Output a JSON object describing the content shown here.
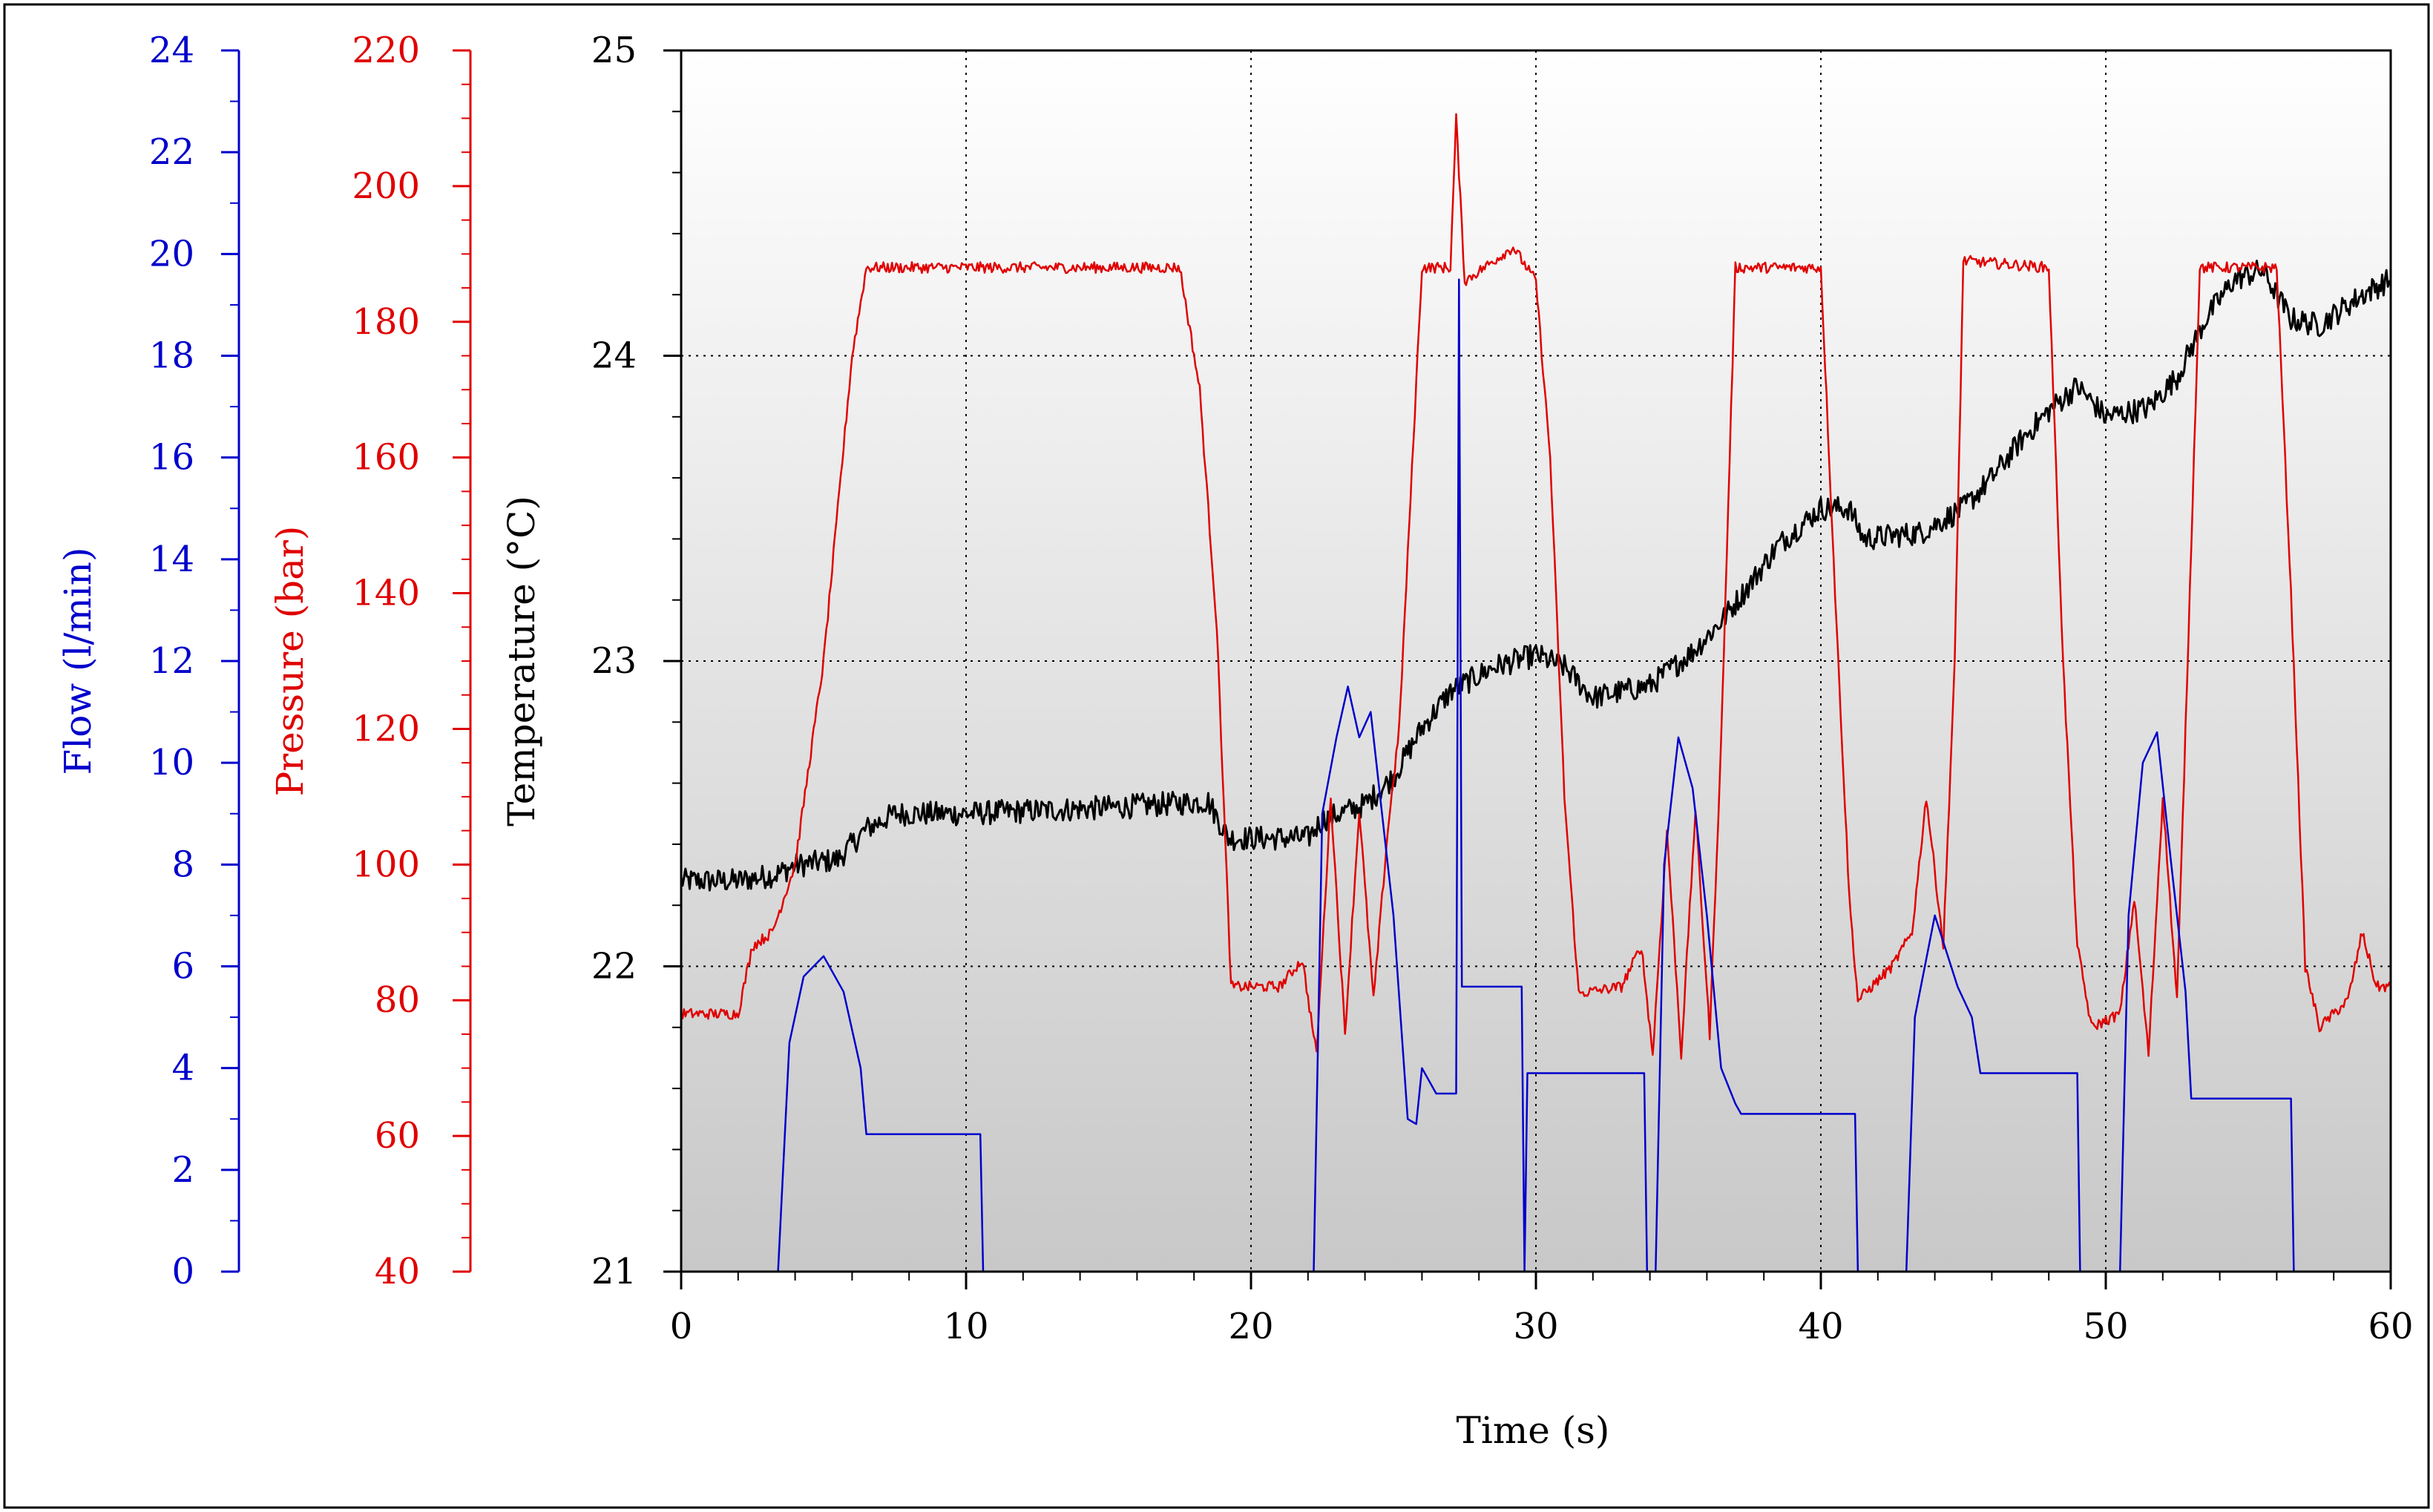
{
  "chart_data": {
    "type": "line",
    "title": "",
    "xlabel": "Time (s)",
    "xlim": [
      0,
      60
    ],
    "xticks": [
      0,
      10,
      20,
      30,
      40,
      50,
      60
    ],
    "grid": true,
    "axes": {
      "flow": {
        "label": "Flow (l/min)",
        "color": "#0000cc",
        "ylim": [
          0,
          24
        ],
        "ticks": [
          0,
          2,
          4,
          6,
          8,
          10,
          12,
          14,
          16,
          18,
          20,
          22,
          24
        ]
      },
      "pressure": {
        "label": "Pressure (bar)",
        "color": "#e00000",
        "ylim": [
          40,
          220
        ],
        "ticks": [
          40,
          60,
          80,
          100,
          120,
          140,
          160,
          180,
          200,
          220
        ]
      },
      "temperature": {
        "label": "Temperature (°C)",
        "color": "#000000",
        "ylim": [
          21,
          25
        ],
        "ticks": [
          21,
          22,
          23,
          24,
          25
        ]
      }
    },
    "series": [
      {
        "name": "Temperature",
        "axis": "temperature",
        "color": "#000000",
        "noise": 0.04,
        "points": [
          [
            0,
            22.28
          ],
          [
            2,
            22.28
          ],
          [
            3.3,
            22.3
          ],
          [
            4,
            22.33
          ],
          [
            5.5,
            22.35
          ],
          [
            6.5,
            22.45
          ],
          [
            7.5,
            22.5
          ],
          [
            10,
            22.5
          ],
          [
            15,
            22.52
          ],
          [
            18.5,
            22.54
          ],
          [
            19.2,
            22.42
          ],
          [
            22,
            22.42
          ],
          [
            22.5,
            22.48
          ],
          [
            24,
            22.53
          ],
          [
            25,
            22.62
          ],
          [
            26,
            22.78
          ],
          [
            27,
            22.9
          ],
          [
            28.5,
            22.98
          ],
          [
            30,
            23.02
          ],
          [
            31,
            22.98
          ],
          [
            32,
            22.88
          ],
          [
            34,
            22.92
          ],
          [
            35.5,
            23.03
          ],
          [
            36.5,
            23.13
          ],
          [
            37.5,
            23.25
          ],
          [
            38.5,
            23.38
          ],
          [
            40,
            23.5
          ],
          [
            41,
            23.5
          ],
          [
            41.5,
            23.4
          ],
          [
            43.5,
            23.42
          ],
          [
            45,
            23.5
          ],
          [
            46,
            23.6
          ],
          [
            47,
            23.72
          ],
          [
            48,
            23.82
          ],
          [
            49,
            23.9
          ],
          [
            50,
            23.8
          ],
          [
            51.5,
            23.83
          ],
          [
            52.5,
            23.93
          ],
          [
            53.5,
            24.12
          ],
          [
            54.5,
            24.25
          ],
          [
            55.5,
            24.28
          ],
          [
            56.5,
            24.12
          ],
          [
            57.5,
            24.1
          ],
          [
            59,
            24.2
          ],
          [
            60,
            24.25
          ]
        ]
      },
      {
        "name": "Pressure",
        "axis": "pressure",
        "color": "#e00000",
        "noise": 0.8,
        "points": [
          [
            0,
            78
          ],
          [
            2,
            78
          ],
          [
            2.5,
            88
          ],
          [
            3.2,
            90
          ],
          [
            4,
            100
          ],
          [
            5,
            130
          ],
          [
            6,
            175
          ],
          [
            6.5,
            188
          ],
          [
            17.5,
            188
          ],
          [
            18.2,
            170
          ],
          [
            18.8,
            135
          ],
          [
            19.3,
            82
          ],
          [
            21,
            82
          ],
          [
            21.8,
            86
          ],
          [
            22.3,
            72
          ],
          [
            22.8,
            110
          ],
          [
            23.3,
            75
          ],
          [
            23.8,
            108
          ],
          [
            24.3,
            80
          ],
          [
            24.8,
            105
          ],
          [
            25.2,
            120
          ],
          [
            26,
            188
          ],
          [
            27,
            188
          ],
          [
            27.2,
            210
          ],
          [
            27.5,
            186
          ],
          [
            29.2,
            191
          ],
          [
            30,
            186
          ],
          [
            30.5,
            160
          ],
          [
            31,
            110
          ],
          [
            31.5,
            81
          ],
          [
            33,
            82
          ],
          [
            33.7,
            88
          ],
          [
            34.1,
            72
          ],
          [
            34.6,
            105
          ],
          [
            35.1,
            72
          ],
          [
            35.6,
            108
          ],
          [
            36.1,
            75
          ],
          [
            36.5,
            118
          ],
          [
            37,
            188
          ],
          [
            40,
            188
          ],
          [
            40.5,
            140
          ],
          [
            41,
            95
          ],
          [
            41.3,
            80
          ],
          [
            42.5,
            85
          ],
          [
            43.2,
            90
          ],
          [
            43.7,
            110
          ],
          [
            44.3,
            88
          ],
          [
            44.7,
            130
          ],
          [
            45,
            189
          ],
          [
            48,
            188
          ],
          [
            48.5,
            130
          ],
          [
            49,
            88
          ],
          [
            49.5,
            76
          ],
          [
            50.5,
            78
          ],
          [
            51,
            95
          ],
          [
            51.5,
            72
          ],
          [
            52,
            110
          ],
          [
            52.5,
            80
          ],
          [
            52.8,
            120
          ],
          [
            53.3,
            188
          ],
          [
            56,
            188
          ],
          [
            56.5,
            140
          ],
          [
            57,
            85
          ],
          [
            57.5,
            76
          ],
          [
            58.5,
            80
          ],
          [
            59,
            90
          ],
          [
            59.5,
            82
          ],
          [
            60,
            82
          ]
        ]
      },
      {
        "name": "Flow",
        "axis": "flow",
        "color": "#0000cc",
        "noise": 0,
        "points": [
          [
            0,
            0
          ],
          [
            3.4,
            0
          ],
          [
            3.8,
            4.5
          ],
          [
            4.3,
            5.8
          ],
          [
            5,
            6.2
          ],
          [
            5.7,
            5.5
          ],
          [
            6.3,
            4
          ],
          [
            6.5,
            2.7
          ],
          [
            10.5,
            2.7
          ],
          [
            10.6,
            0
          ],
          [
            22.2,
            0
          ],
          [
            22.5,
            9
          ],
          [
            23,
            10.5
          ],
          [
            23.4,
            11.5
          ],
          [
            23.8,
            10.5
          ],
          [
            24.2,
            11
          ],
          [
            24.6,
            9
          ],
          [
            25,
            7
          ],
          [
            25.5,
            3
          ],
          [
            25.8,
            2.9
          ],
          [
            26,
            4
          ],
          [
            26.5,
            3.5
          ],
          [
            27.2,
            3.5
          ],
          [
            27.3,
            19.5
          ],
          [
            27.4,
            5.6
          ],
          [
            29.5,
            5.6
          ],
          [
            29.6,
            0
          ],
          [
            29.7,
            3.9
          ],
          [
            33.8,
            3.9
          ],
          [
            33.9,
            0
          ],
          [
            34.2,
            0
          ],
          [
            34.5,
            8
          ],
          [
            35,
            10.5
          ],
          [
            35.5,
            9.5
          ],
          [
            36,
            7
          ],
          [
            36.5,
            4
          ],
          [
            37,
            3.3
          ],
          [
            37.2,
            3.1
          ],
          [
            41.2,
            3.1
          ],
          [
            41.3,
            0
          ],
          [
            43,
            0
          ],
          [
            43.3,
            5
          ],
          [
            44,
            7
          ],
          [
            44.8,
            5.6
          ],
          [
            45.3,
            5
          ],
          [
            45.6,
            3.9
          ],
          [
            49,
            3.9
          ],
          [
            49.1,
            0
          ],
          [
            50.5,
            0
          ],
          [
            50.8,
            7
          ],
          [
            51.3,
            10
          ],
          [
            51.8,
            10.6
          ],
          [
            52.3,
            8
          ],
          [
            52.8,
            5.5
          ],
          [
            53,
            3.4
          ],
          [
            56.5,
            3.4
          ],
          [
            56.6,
            0
          ],
          [
            60,
            0
          ]
        ]
      }
    ]
  }
}
